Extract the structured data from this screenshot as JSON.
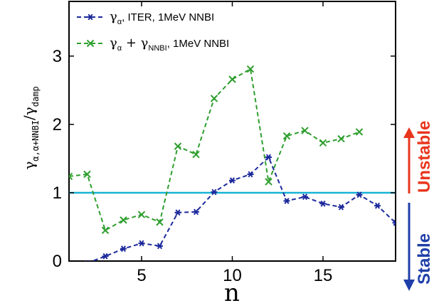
{
  "chart_data": {
    "type": "line",
    "title": "",
    "xlabel": "n",
    "ylabel": "γ_α,α+NNBI / γ_damp",
    "xlim": [
      1,
      19
    ],
    "ylim": [
      0,
      3.8
    ],
    "xticks": [
      5,
      10,
      15
    ],
    "yticks": [
      0,
      1,
      2,
      3
    ],
    "grid": false,
    "legend_position": "top-left",
    "series": [
      {
        "name": "γα, ITER, 1MeV NNBI",
        "color": "#1c2a9c",
        "marker": "asterisk",
        "x": [
          2,
          3,
          4,
          5,
          6,
          7,
          8,
          9,
          10,
          11,
          12,
          13,
          14,
          15,
          16,
          17,
          18,
          19
        ],
        "values": [
          -0.03,
          0.07,
          0.18,
          0.26,
          0.22,
          0.71,
          0.72,
          1.01,
          1.18,
          1.27,
          1.52,
          0.88,
          0.94,
          0.84,
          0.79,
          0.97,
          0.81,
          0.56
        ]
      },
      {
        "name": "γα + γNNBI, 1MeV NNBI",
        "color": "#2e9e2e",
        "marker": "x",
        "x": [
          1,
          2,
          3,
          4,
          5,
          6,
          7,
          8,
          9,
          10,
          11,
          12,
          13,
          14,
          15,
          16,
          17
        ],
        "values": [
          1.24,
          1.27,
          0.45,
          0.6,
          0.68,
          0.57,
          1.68,
          1.56,
          2.38,
          2.66,
          2.81,
          1.16,
          1.83,
          1.91,
          1.73,
          1.79,
          1.89
        ]
      }
    ],
    "reference_line": {
      "y": 1.0,
      "color": "#17b3d6"
    },
    "side_labels": {
      "unstable": "Unstable",
      "stable": "Stable",
      "unstable_color": "#e8351d",
      "stable_color": "#1f3fa8"
    }
  },
  "legend": {
    "entry1_main": "γ",
    "entry1_sub": "α",
    "entry1_rest": ", ITER, 1MeV NNBI",
    "entry2_main1": "γ",
    "entry2_sub1": "α",
    "entry2_plus": " + γ",
    "entry2_sub2": "NNBI",
    "entry2_rest": ", 1MeV NNBI"
  },
  "axis_text": {
    "x_label": "n",
    "y_main1": "γ",
    "y_sub1": "α,α+NNBI",
    "y_slash": "/γ",
    "y_sub2": "damp"
  }
}
